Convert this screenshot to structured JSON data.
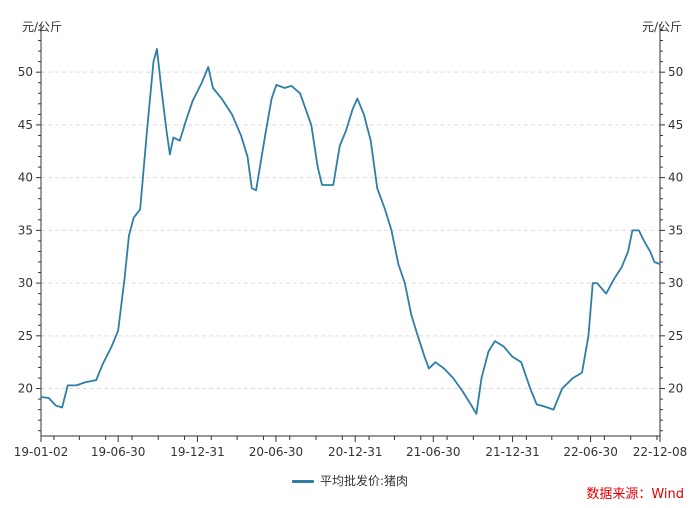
{
  "colors": {
    "series": "#2e7ea6",
    "axis": "#333333",
    "grid": "#dddddd",
    "source": "#e00000"
  },
  "units": {
    "left": "元/公斤",
    "right": "元/公斤"
  },
  "legend": {
    "label": "平均批发价:猪肉"
  },
  "source": {
    "text": "数据来源：Wind"
  },
  "chart_data": {
    "type": "line",
    "title": "",
    "xlabel": "",
    "ylabel": "元/公斤",
    "ylim": [
      15.5,
      54
    ],
    "yticks": [
      20,
      25,
      30,
      35,
      40,
      45,
      50
    ],
    "xlim": [
      "2019-01-02",
      "2022-12-08"
    ],
    "xticks": [
      {
        "date": "2019-01-02",
        "label": "19-01-02"
      },
      {
        "date": "2019-06-30",
        "label": "19-06-30"
      },
      {
        "date": "2019-12-31",
        "label": "19-12-31"
      },
      {
        "date": "2020-06-30",
        "label": "20-06-30"
      },
      {
        "date": "2020-12-31",
        "label": "20-12-31"
      },
      {
        "date": "2021-06-30",
        "label": "21-06-30"
      },
      {
        "date": "2021-12-31",
        "label": "21-12-31"
      },
      {
        "date": "2022-06-30",
        "label": "22-06-30"
      },
      {
        "date": "2022-12-08",
        "label": "22-12-08"
      }
    ],
    "grid": true,
    "legend_position": "bottom",
    "series": [
      {
        "name": "平均批发价:猪肉",
        "points": [
          [
            "2019-01-02",
            19.2
          ],
          [
            "2019-01-20",
            19.1
          ],
          [
            "2019-02-05",
            18.4
          ],
          [
            "2019-02-20",
            18.2
          ],
          [
            "2019-03-05",
            20.3
          ],
          [
            "2019-03-25",
            20.3
          ],
          [
            "2019-04-15",
            20.6
          ],
          [
            "2019-05-10",
            20.8
          ],
          [
            "2019-05-25",
            22.3
          ],
          [
            "2019-06-15",
            24.0
          ],
          [
            "2019-06-30",
            25.5
          ],
          [
            "2019-07-15",
            30.5
          ],
          [
            "2019-07-25",
            34.5
          ],
          [
            "2019-08-05",
            36.2
          ],
          [
            "2019-08-20",
            37.0
          ],
          [
            "2019-09-05",
            44.5
          ],
          [
            "2019-09-20",
            51.0
          ],
          [
            "2019-09-28",
            52.2
          ],
          [
            "2019-10-08",
            48.5
          ],
          [
            "2019-10-20",
            44.5
          ],
          [
            "2019-10-28",
            42.2
          ],
          [
            "2019-11-05",
            43.8
          ],
          [
            "2019-11-20",
            43.5
          ],
          [
            "2019-12-05",
            45.5
          ],
          [
            "2019-12-20",
            47.3
          ],
          [
            "2020-01-10",
            49.0
          ],
          [
            "2020-01-25",
            50.5
          ],
          [
            "2020-02-05",
            48.5
          ],
          [
            "2020-02-25",
            47.5
          ],
          [
            "2020-03-20",
            46.0
          ],
          [
            "2020-04-10",
            44.0
          ],
          [
            "2020-04-25",
            42.0
          ],
          [
            "2020-05-05",
            39.0
          ],
          [
            "2020-05-15",
            38.8
          ],
          [
            "2020-06-05",
            44.0
          ],
          [
            "2020-06-20",
            47.5
          ],
          [
            "2020-07-01",
            48.8
          ],
          [
            "2020-07-20",
            48.5
          ],
          [
            "2020-08-05",
            48.7
          ],
          [
            "2020-08-25",
            48.0
          ],
          [
            "2020-09-20",
            45.0
          ],
          [
            "2020-10-05",
            41.0
          ],
          [
            "2020-10-15",
            39.3
          ],
          [
            "2020-11-10",
            39.3
          ],
          [
            "2020-11-25",
            43.0
          ],
          [
            "2020-12-10",
            44.5
          ],
          [
            "2020-12-25",
            46.5
          ],
          [
            "2021-01-05",
            47.5
          ],
          [
            "2021-01-20",
            46.0
          ],
          [
            "2021-02-05",
            43.5
          ],
          [
            "2021-02-20",
            39.0
          ],
          [
            "2021-03-10",
            37.0
          ],
          [
            "2021-03-25",
            35.0
          ],
          [
            "2021-04-10",
            31.8
          ],
          [
            "2021-04-25",
            30.0
          ],
          [
            "2021-05-10",
            27.0
          ],
          [
            "2021-05-25",
            25.0
          ],
          [
            "2021-06-10",
            23.0
          ],
          [
            "2021-06-20",
            21.9
          ],
          [
            "2021-07-05",
            22.5
          ],
          [
            "2021-07-25",
            21.9
          ],
          [
            "2021-08-15",
            21.0
          ],
          [
            "2021-09-05",
            19.8
          ],
          [
            "2021-09-25",
            18.5
          ],
          [
            "2021-10-08",
            17.6
          ],
          [
            "2021-10-20",
            21.0
          ],
          [
            "2021-11-05",
            23.5
          ],
          [
            "2021-11-20",
            24.5
          ],
          [
            "2021-12-10",
            24.0
          ],
          [
            "2021-12-31",
            23.0
          ],
          [
            "2022-01-20",
            22.5
          ],
          [
            "2022-02-10",
            20.0
          ],
          [
            "2022-02-25",
            18.5
          ],
          [
            "2022-03-15",
            18.3
          ],
          [
            "2022-04-05",
            18.0
          ],
          [
            "2022-04-25",
            20.0
          ],
          [
            "2022-05-20",
            21.0
          ],
          [
            "2022-06-10",
            21.5
          ],
          [
            "2022-06-25",
            25.0
          ],
          [
            "2022-07-05",
            30.0
          ],
          [
            "2022-07-15",
            30.0
          ],
          [
            "2022-08-05",
            29.0
          ],
          [
            "2022-08-25",
            30.5
          ],
          [
            "2022-09-10",
            31.5
          ],
          [
            "2022-09-25",
            33.0
          ],
          [
            "2022-10-05",
            35.0
          ],
          [
            "2022-10-20",
            35.0
          ],
          [
            "2022-11-01",
            34.0
          ],
          [
            "2022-11-15",
            33.0
          ],
          [
            "2022-11-25",
            32.0
          ],
          [
            "2022-12-08",
            31.8
          ]
        ]
      }
    ]
  }
}
